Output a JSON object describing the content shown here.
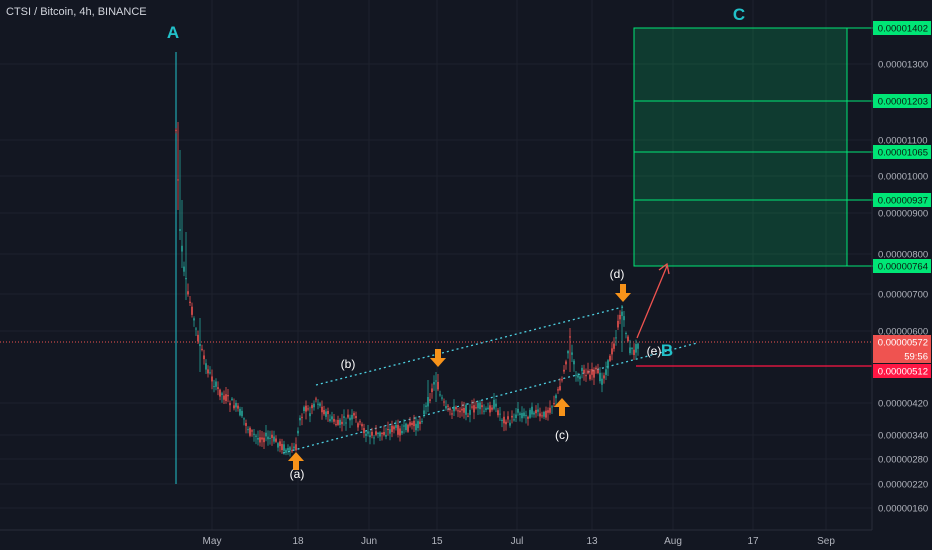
{
  "chart_data": {
    "type": "candlestick",
    "title": "CTSI / Bitcoin, 4h, BINANCE",
    "price_axis_labels": [
      "0.00001300",
      "0.00001100",
      "0.00001000",
      "0.00000900",
      "0.00000800",
      "0.00000700",
      "0.00000600",
      "0.00000420",
      "0.00000340",
      "0.00000280",
      "0.00000220",
      "0.00000160"
    ],
    "x_tick_labels": [
      "May",
      "18",
      "Jun",
      "15",
      "Jul",
      "13",
      "Aug",
      "17",
      "Sep"
    ],
    "price_tags": [
      {
        "value": "0.00001402",
        "color": "#00e676"
      },
      {
        "value": "0.00001203",
        "color": "#00e676"
      },
      {
        "value": "0.00001065",
        "color": "#00e676"
      },
      {
        "value": "0.00000937",
        "color": "#00e676"
      },
      {
        "value": "0.00000764",
        "color": "#00e676"
      },
      {
        "value": "0.00000572",
        "color": "#ef5350"
      },
      {
        "value": "59:56",
        "color": "#ef5350"
      },
      {
        "value": "0.00000512",
        "color": "#ff1744"
      }
    ],
    "wave_labels": [
      "(a)",
      "(b)",
      "(c)",
      "(d)",
      "(e)"
    ],
    "big_labels": [
      "A",
      "B",
      "C"
    ],
    "colors": {
      "up": "#26a69a",
      "down": "#ef5350",
      "target": "#00e676",
      "arrow": "#f7931a",
      "accent": "#22c1c9"
    }
  }
}
